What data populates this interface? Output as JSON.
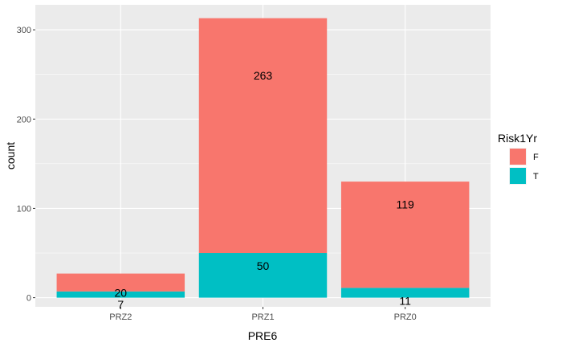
{
  "chart_data": {
    "type": "bar",
    "stacked": true,
    "categories": [
      "PRZ2",
      "PRZ1",
      "PRZ0"
    ],
    "series": [
      {
        "name": "T",
        "values": [
          7,
          50,
          11
        ],
        "color": "#00BFC4"
      },
      {
        "name": "F",
        "values": [
          20,
          263,
          119
        ],
        "color": "#F8766D"
      }
    ],
    "xlabel": "PRE6",
    "ylabel": "count",
    "ylim": [
      0,
      330
    ],
    "yticks": [
      0,
      100,
      200,
      300
    ],
    "legend": {
      "title": "Risk1Yr",
      "entries": [
        "F",
        "T"
      ],
      "position": "right"
    },
    "grid": true,
    "panel_background": "#EBEBEB"
  }
}
